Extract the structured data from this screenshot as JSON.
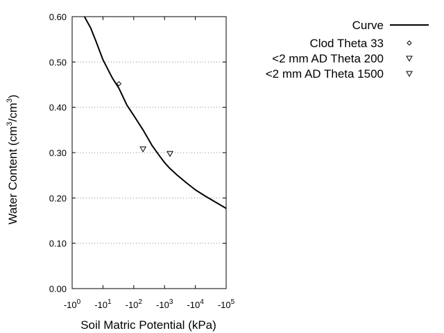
{
  "chart_data": {
    "type": "scatter",
    "title": "",
    "xlabel": "Soil Matric Potential (kPa)",
    "ylabel_main": "Water Content (cm",
    "ylabel_sup1": "3",
    "ylabel_mid": "/cm",
    "ylabel_sup2": "3",
    "ylabel_end": ")",
    "x_scale": "log",
    "x_axis_note": "x axis shows negative matric potential; tick labels are -10^n",
    "xlim": [
      1,
      100000
    ],
    "ylim": [
      0.0,
      0.6
    ],
    "x_ticks": [
      {
        "value": 1,
        "base": "-10",
        "exp": "0"
      },
      {
        "value": 10,
        "base": "-10",
        "exp": "1"
      },
      {
        "value": 100,
        "base": "-10",
        "exp": "2"
      },
      {
        "value": 1000,
        "base": "-10",
        "exp": "3"
      },
      {
        "value": 10000,
        "base": "-10",
        "exp": "4"
      },
      {
        "value": 100000,
        "base": "-10",
        "exp": "5"
      }
    ],
    "y_ticks": [
      {
        "value": 0.0,
        "label": "0.00"
      },
      {
        "value": 0.1,
        "label": "0.10"
      },
      {
        "value": 0.2,
        "label": "0.20"
      },
      {
        "value": 0.3,
        "label": "0.30"
      },
      {
        "value": 0.4,
        "label": "0.40"
      },
      {
        "value": 0.5,
        "label": "0.50"
      },
      {
        "value": 0.6,
        "label": "0.60"
      }
    ],
    "grid": "horizontal dotted",
    "legend_position": "right",
    "series": [
      {
        "name": "Curve",
        "kind": "line",
        "color": "#000000",
        "x": [
          2.5,
          4,
          6,
          10,
          20,
          33,
          60,
          100,
          200,
          400,
          700,
          1000,
          1500,
          2500,
          5000,
          10000,
          20000,
          50000,
          100000
        ],
        "y": [
          0.6,
          0.575,
          0.545,
          0.505,
          0.465,
          0.442,
          0.405,
          0.382,
          0.35,
          0.315,
          0.292,
          0.278,
          0.265,
          0.251,
          0.234,
          0.218,
          0.205,
          0.189,
          0.177
        ]
      },
      {
        "name": "Clod Theta 33",
        "kind": "points",
        "marker": "diamond",
        "x": [
          33
        ],
        "y": [
          0.452
        ]
      },
      {
        "name": "<2 mm AD Theta 200",
        "kind": "points",
        "marker": "triangle-down",
        "x": [
          200
        ],
        "y": [
          0.308
        ]
      },
      {
        "name": "<2 mm AD Theta 1500",
        "kind": "points",
        "marker": "triangle-down",
        "x": [
          1500
        ],
        "y": [
          0.298
        ]
      }
    ]
  }
}
